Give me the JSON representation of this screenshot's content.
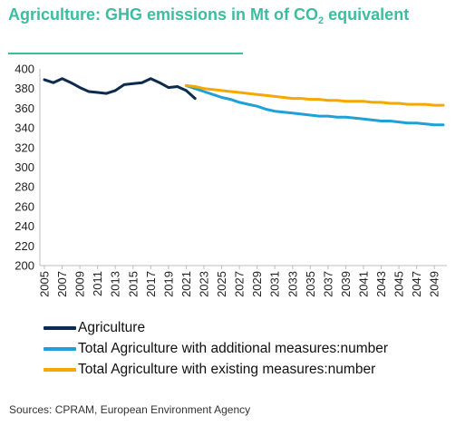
{
  "title": {
    "prefix": "Agriculture: GHG emissions in Mt of CO",
    "subscript": "2",
    "suffix": " equivalent"
  },
  "source": "Sources: CPRAM, European Environment Agency",
  "colors": {
    "title": "#3dbda0",
    "agriculture": "#0d2b4e",
    "additional": "#1fa0d6",
    "existing": "#f5a800"
  },
  "chart_data": {
    "type": "line",
    "title": "Agriculture: GHG emissions in Mt of CO2 equivalent",
    "xlabel": "",
    "ylabel": "",
    "ylim": [
      200,
      400
    ],
    "yticks": [
      200,
      220,
      240,
      260,
      280,
      300,
      320,
      340,
      360,
      380,
      400
    ],
    "xlim": [
      2005,
      2050
    ],
    "xticks": [
      "2005",
      "2007",
      "2009",
      "2011",
      "2013",
      "2015",
      "2017",
      "2019",
      "2021",
      "2023",
      "2025",
      "2027",
      "2029",
      "2031",
      "2033",
      "2035",
      "2037",
      "2039",
      "2041",
      "2043",
      "2045",
      "2047",
      "2049"
    ],
    "grid": false,
    "legend_position": "bottom",
    "series": [
      {
        "name": "Agriculture",
        "color": "#0d2b4e",
        "x": [
          2005,
          2006,
          2007,
          2008,
          2009,
          2010,
          2011,
          2012,
          2013,
          2014,
          2015,
          2016,
          2017,
          2018,
          2019,
          2020,
          2021,
          2022
        ],
        "y": [
          389,
          386,
          390,
          386,
          381,
          377,
          376,
          375,
          378,
          384,
          385,
          386,
          390,
          386,
          381,
          382,
          378,
          370
        ]
      },
      {
        "name": "Total Agriculture with additional measures:number",
        "color": "#1fa0d6",
        "x": [
          2021,
          2022,
          2023,
          2024,
          2025,
          2026,
          2027,
          2028,
          2029,
          2030,
          2031,
          2032,
          2033,
          2034,
          2035,
          2036,
          2037,
          2038,
          2039,
          2040,
          2041,
          2042,
          2043,
          2044,
          2045,
          2046,
          2047,
          2048,
          2049,
          2050
        ],
        "y": [
          383,
          380,
          377,
          374,
          371,
          369,
          366,
          364,
          362,
          359,
          357,
          356,
          355,
          354,
          353,
          352,
          352,
          351,
          351,
          350,
          349,
          348,
          347,
          347,
          346,
          345,
          345,
          344,
          343,
          343
        ]
      },
      {
        "name": "Total Agriculture with existing measures:number",
        "color": "#f5a800",
        "x": [
          2021,
          2022,
          2023,
          2024,
          2025,
          2026,
          2027,
          2028,
          2029,
          2030,
          2031,
          2032,
          2033,
          2034,
          2035,
          2036,
          2037,
          2038,
          2039,
          2040,
          2041,
          2042,
          2043,
          2044,
          2045,
          2046,
          2047,
          2048,
          2049,
          2050
        ],
        "y": [
          383,
          382,
          380,
          379,
          378,
          377,
          376,
          375,
          374,
          373,
          372,
          371,
          370,
          370,
          369,
          369,
          368,
          368,
          367,
          367,
          367,
          366,
          366,
          365,
          365,
          364,
          364,
          364,
          363,
          363
        ]
      }
    ]
  }
}
